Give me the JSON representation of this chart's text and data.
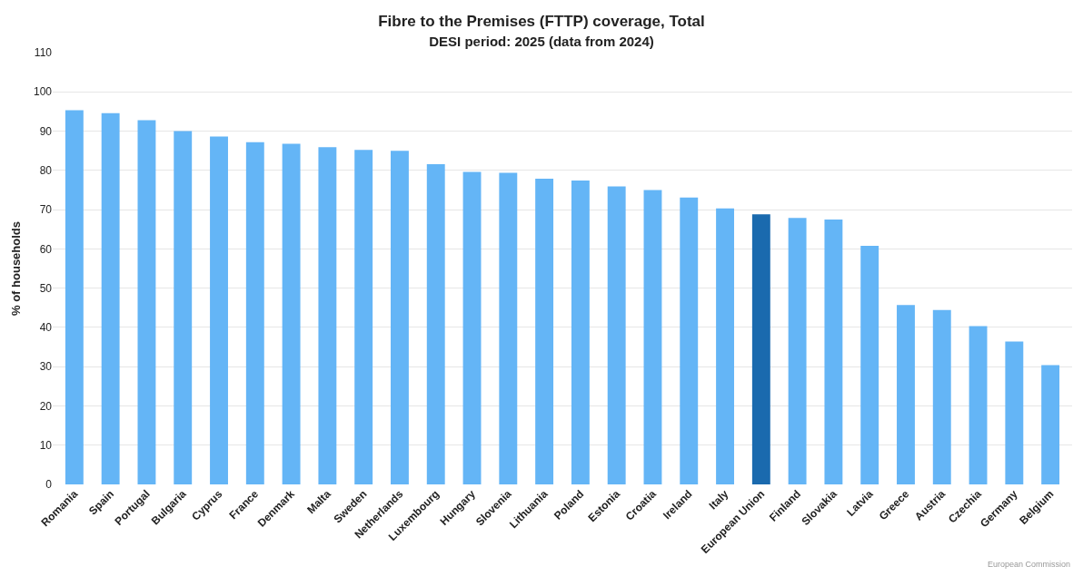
{
  "chart_data": {
    "type": "bar",
    "title": "Fibre to the Premises (FTTP) coverage, Total",
    "subtitle": "DESI period: 2025 (data from 2024)",
    "ylabel": "% of households",
    "categories": [
      "Romania",
      "Spain",
      "Portugal",
      "Bulgaria",
      "Cyprus",
      "France",
      "Denmark",
      "Malta",
      "Sweden",
      "Netherlands",
      "Luxembourg",
      "Hungary",
      "Slovenia",
      "Lithuania",
      "Poland",
      "Estonia",
      "Croatia",
      "Ireland",
      "Italy",
      "European Union",
      "Finland",
      "Slovakia",
      "Latvia",
      "Greece",
      "Austria",
      "Czechia",
      "Germany",
      "Belgium"
    ],
    "values": [
      95.3,
      94.6,
      92.8,
      90,
      88.6,
      87.2,
      86.8,
      85.9,
      85.2,
      85,
      81.6,
      79.6,
      79.4,
      77.9,
      77.4,
      75.9,
      75,
      73.1,
      70.3,
      68.8,
      67.9,
      67.5,
      60.8,
      45.7,
      44.4,
      40.3,
      36.4,
      30.4
    ],
    "colors": [
      "#64b5f6",
      "#64b5f6",
      "#64b5f6",
      "#64b5f6",
      "#64b5f6",
      "#64b5f6",
      "#64b5f6",
      "#64b5f6",
      "#64b5f6",
      "#64b5f6",
      "#64b5f6",
      "#64b5f6",
      "#64b5f6",
      "#64b5f6",
      "#64b5f6",
      "#64b5f6",
      "#64b5f6",
      "#64b5f6",
      "#64b5f6",
      "#1a6aae",
      "#64b5f6",
      "#64b5f6",
      "#64b5f6",
      "#64b5f6",
      "#64b5f6",
      "#64b5f6",
      "#64b5f6",
      "#64b5f6"
    ],
    "ylim": [
      0,
      110
    ],
    "yticks": [
      0,
      10,
      20,
      30,
      40,
      50,
      60,
      70,
      80,
      90,
      100,
      110
    ],
    "grid": "y",
    "annotations": [
      "European Commission"
    ]
  }
}
